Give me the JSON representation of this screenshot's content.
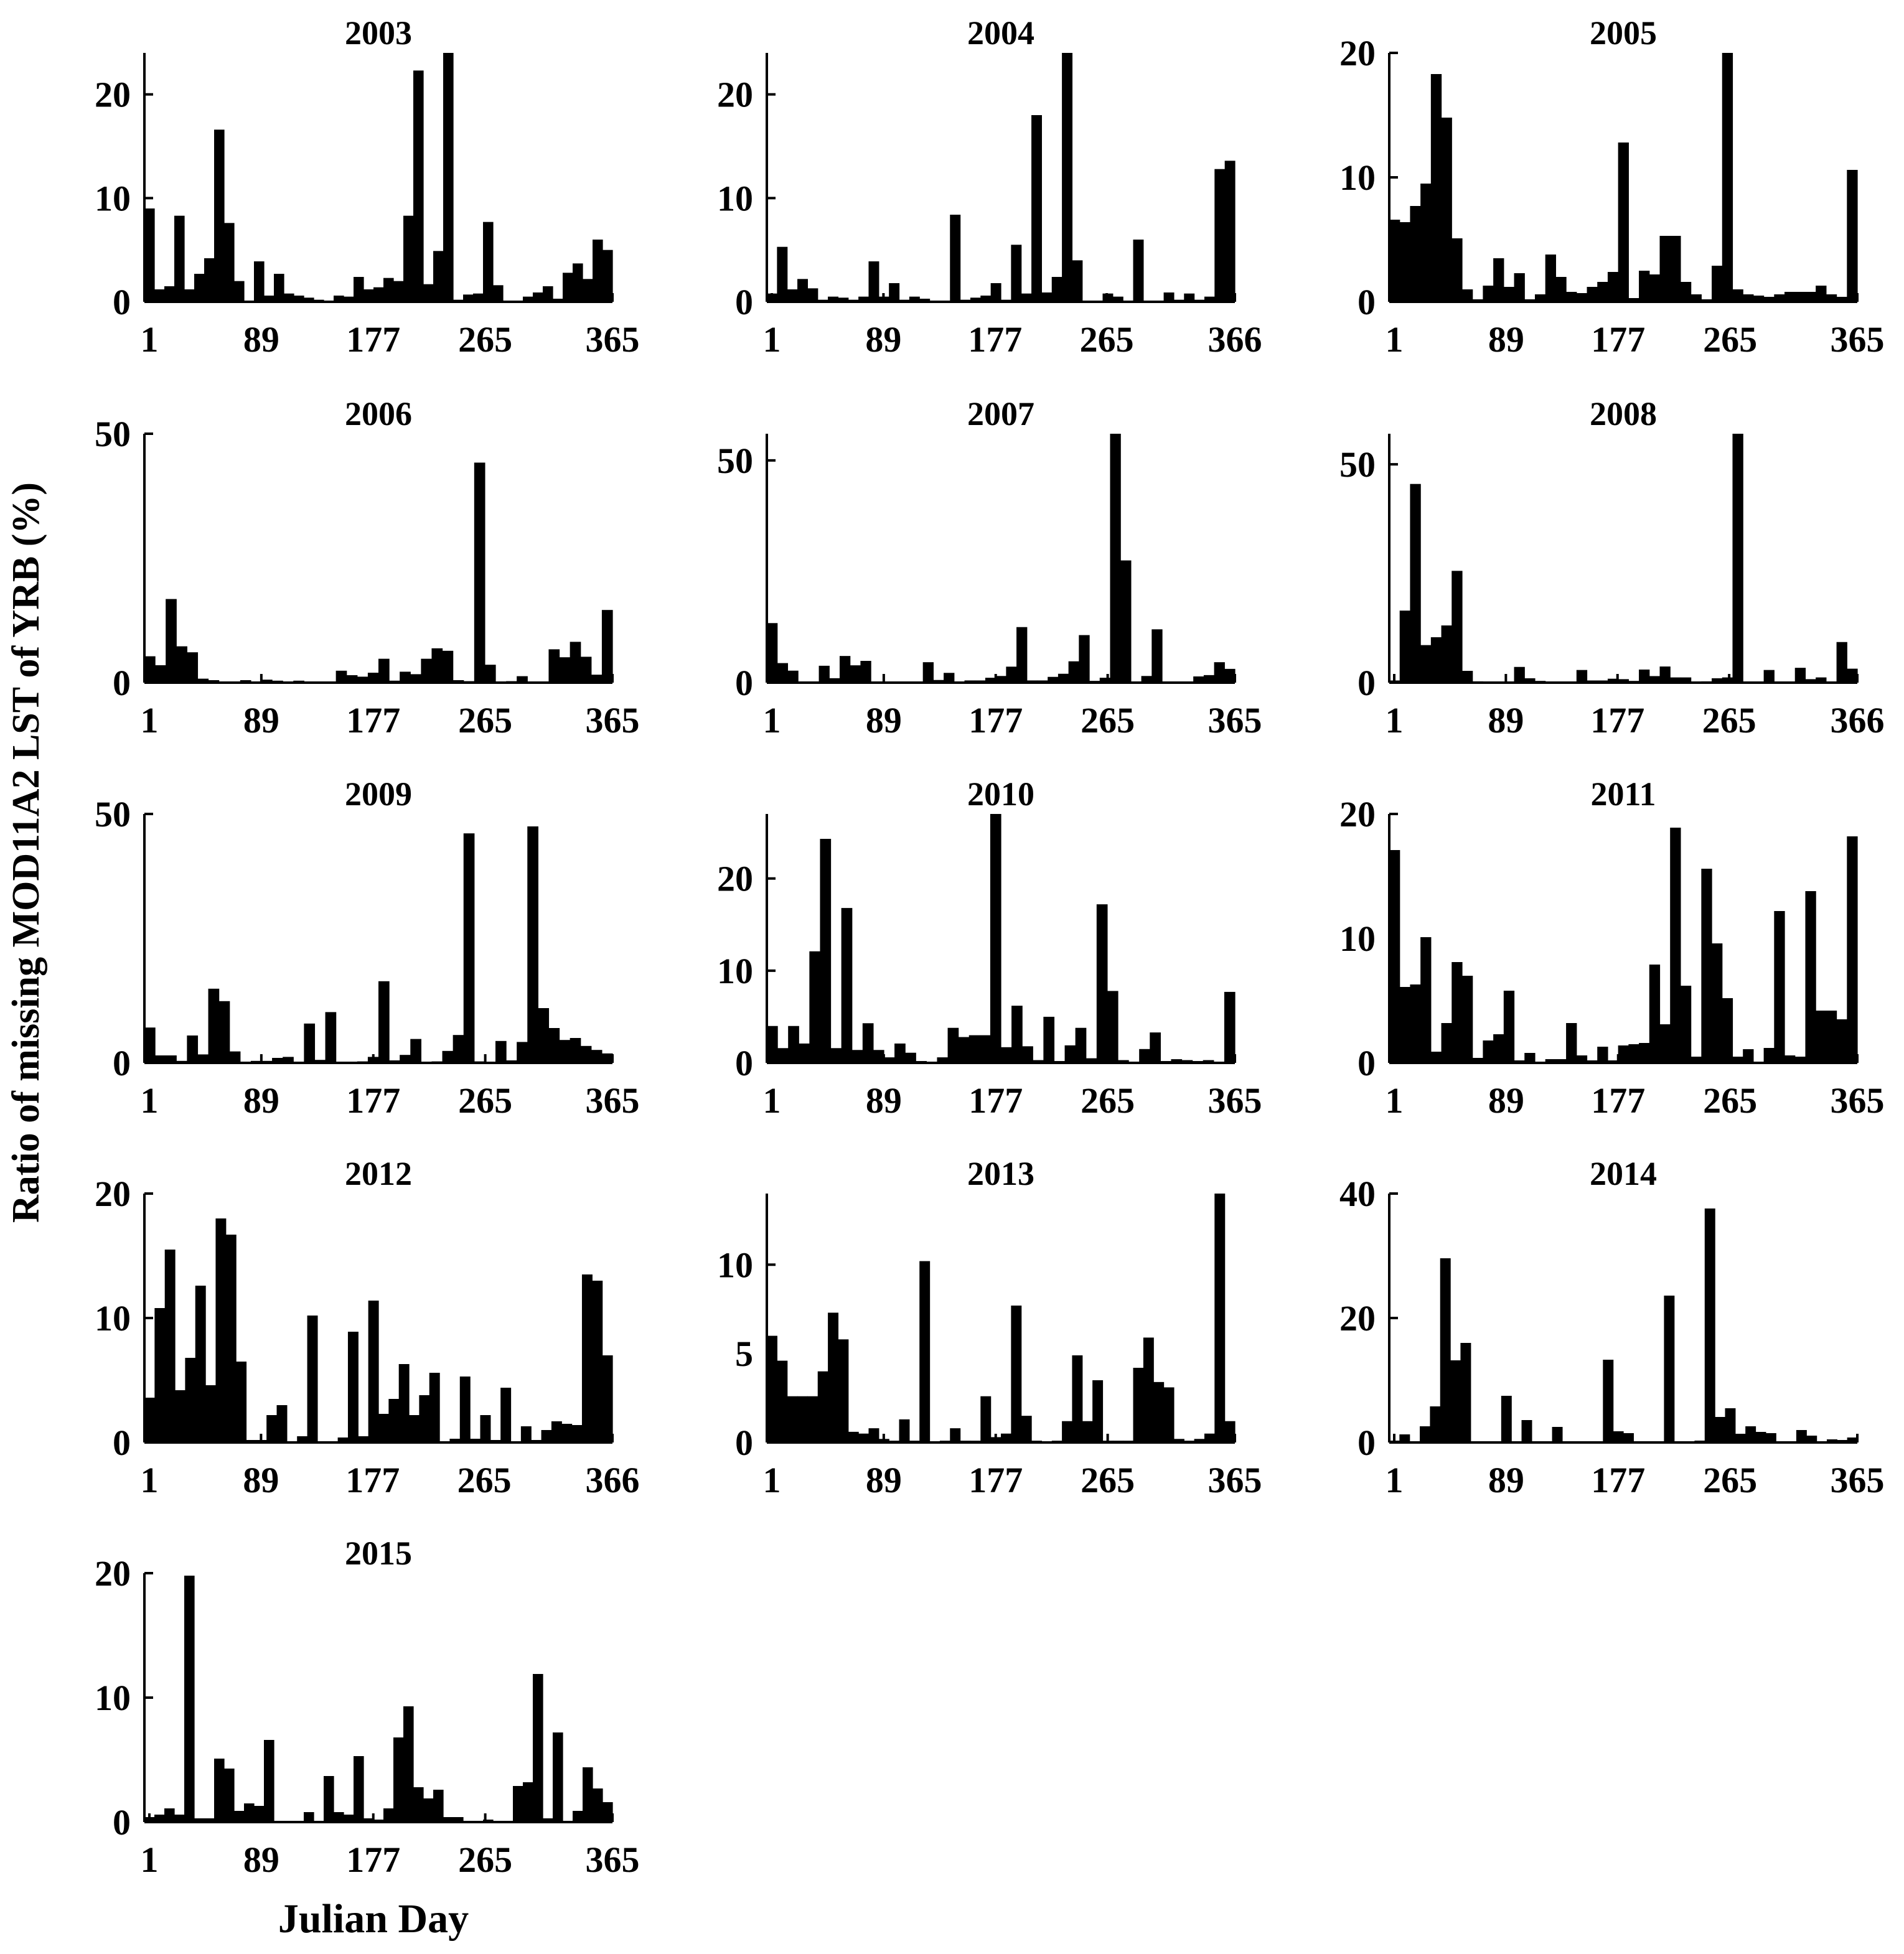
{
  "figure": {
    "ylabel": "Ratio of missing MOD11A2 LST of YRB (%)",
    "xlabel": "Julian Day"
  },
  "chart_data": [
    {
      "type": "bar",
      "title": "2003",
      "ylim": [
        0,
        24
      ],
      "yticks": [
        0,
        10,
        20
      ],
      "xticks": [
        "1",
        "89",
        "177",
        "265",
        "365"
      ],
      "values": [
        9,
        1.2,
        1.5,
        8.3,
        1.2,
        2.7,
        4.2,
        16.6,
        7.6,
        2,
        0,
        3.9,
        0.6,
        2.7,
        0.8,
        0.6,
        0.4,
        0.2,
        0.1,
        0.6,
        0.5,
        2.4,
        1.2,
        1.4,
        2.3,
        2,
        8.3,
        22.3,
        1.7,
        4.9,
        24,
        0.2,
        0.7,
        0.8,
        7.7,
        1.6,
        0,
        0,
        0.5,
        0.9,
        1.5,
        0.3,
        2.8,
        3.7,
        2.2,
        6,
        5
      ]
    },
    {
      "type": "bar",
      "title": "2004",
      "ylim": [
        0,
        24
      ],
      "yticks": [
        0,
        10,
        20
      ],
      "xticks": [
        "1",
        "89",
        "177",
        "265",
        "366"
      ],
      "values": [
        0.8,
        5.3,
        1.2,
        2.2,
        1.3,
        0.2,
        0.5,
        0.4,
        0.2,
        0.5,
        3.9,
        0.5,
        1.8,
        0.2,
        0.5,
        0.3,
        0.1,
        0,
        8.4,
        0.2,
        0.4,
        0.6,
        1.8,
        0.2,
        5.5,
        0.8,
        18,
        0.9,
        2.4,
        24,
        4,
        0,
        0,
        0.8,
        0.5,
        0,
        6,
        0.1,
        0,
        0.9,
        0.2,
        0.8,
        0.2,
        0.5,
        12.8,
        13.6
      ]
    },
    {
      "type": "bar",
      "title": "2005",
      "ylim": [
        0,
        20
      ],
      "yticks": [
        0,
        10,
        20
      ],
      "xticks": [
        "1",
        "89",
        "177",
        "265",
        "365"
      ],
      "values": [
        6.6,
        6.4,
        7.7,
        9.5,
        18.3,
        14.8,
        5.1,
        1,
        0.2,
        1.3,
        3.5,
        1.2,
        2.3,
        0.2,
        0.6,
        3.8,
        2,
        0.8,
        0.7,
        1.2,
        1.6,
        2.4,
        12.8,
        0.3,
        2.5,
        2.2,
        5.3,
        5.3,
        1.6,
        0.6,
        0.2,
        2.9,
        20,
        1,
        0.6,
        0.5,
        0.4,
        0.6,
        0.8,
        0.8,
        0.8,
        1.3,
        0.6,
        0.4,
        10.6
      ]
    },
    {
      "type": "bar",
      "title": "2006",
      "ylim": [
        0,
        50
      ],
      "yticks": [
        0,
        50
      ],
      "xticks": [
        "1",
        "89",
        "177",
        "265",
        "365"
      ],
      "values": [
        5.3,
        3.5,
        16.8,
        7.3,
        6.1,
        0.8,
        0.5,
        0.2,
        0.1,
        0.5,
        0.1,
        0.6,
        0.4,
        0.2,
        0.4,
        0.1,
        0.1,
        0.2,
        2.4,
        1.5,
        1.2,
        2,
        4.8,
        0.4,
        2.2,
        1.7,
        4.8,
        6.9,
        6.4,
        0.5,
        0.3,
        44.2,
        3.6,
        0.2,
        0.3,
        1.3,
        0.2,
        0,
        6.7,
        5.1,
        8.2,
        5.2,
        1.6,
        14.6
      ]
    },
    {
      "type": "bar",
      "title": "2007",
      "ylim": [
        0,
        56
      ],
      "yticks": [
        0,
        50
      ],
      "xticks": [
        "1",
        "89",
        "177",
        "265",
        "365"
      ],
      "values": [
        13.4,
        4.4,
        2.7,
        0.2,
        0,
        3.8,
        1,
        6,
        3.9,
        4.9,
        0,
        0,
        0,
        0,
        0.2,
        4.6,
        0.6,
        2.2,
        0.2,
        0.5,
        0.5,
        1.1,
        1.5,
        3.6,
        12.5,
        0.5,
        0.5,
        1.3,
        2,
        4.8,
        10.7,
        0.4,
        1.1,
        56,
        27.5,
        0.2,
        1.5,
        12,
        0.2,
        0,
        0,
        1.4,
        1.7,
        4.6,
        3.1
      ]
    },
    {
      "type": "bar",
      "title": "2008",
      "ylim": [
        0,
        57
      ],
      "yticks": [
        0,
        50
      ],
      "xticks": [
        "1",
        "89",
        "177",
        "265",
        "366"
      ],
      "values": [
        0.5,
        16.5,
        45.5,
        8.6,
        10.4,
        13.1,
        25.6,
        2.7,
        0.3,
        0.2,
        0.2,
        0.2,
        3.6,
        1,
        0.4,
        0.1,
        0,
        0,
        2.9,
        0.5,
        0.5,
        0.9,
        0.8,
        0.4,
        3,
        1.5,
        3.7,
        1.2,
        1.2,
        0.1,
        0.3,
        1,
        1.2,
        57,
        0.2,
        0.1,
        2.9,
        0.2,
        0.1,
        3.4,
        0.8,
        1.2,
        0.1,
        9.3,
        3.2
      ]
    },
    {
      "type": "bar",
      "title": "2009",
      "ylim": [
        0,
        50
      ],
      "yticks": [
        0,
        50
      ],
      "xticks": [
        "1",
        "89",
        "177",
        "265",
        "365"
      ],
      "values": [
        7.1,
        1.5,
        1.5,
        0.4,
        5.5,
        1.7,
        14.9,
        12.4,
        2.3,
        0.2,
        0.4,
        0.4,
        1,
        1.2,
        0,
        7.9,
        0.6,
        10.2,
        0.2,
        0.1,
        0.3,
        1.2,
        16.4,
        0.5,
        1.6,
        4.8,
        0.2,
        0.3,
        2.4,
        5.6,
        46.1,
        0.3,
        0.1,
        4.4,
        0.5,
        4.2,
        47.5,
        11,
        7,
        4.6,
        5,
        3.4,
        2.6,
        1.9
      ]
    },
    {
      "type": "bar",
      "title": "2010",
      "ylim": [
        0,
        27
      ],
      "yticks": [
        0,
        10,
        20
      ],
      "xticks": [
        "1",
        "89",
        "177",
        "265",
        "365"
      ],
      "values": [
        4,
        1.6,
        4,
        2.1,
        12.1,
        24.3,
        1.6,
        16.8,
        1.4,
        4.3,
        1.4,
        0.6,
        2.1,
        1.1,
        0.2,
        0,
        0.6,
        3.8,
        2.8,
        3,
        3,
        27,
        1.7,
        6.2,
        1.8,
        0.3,
        5,
        0.2,
        1.9,
        3.8,
        0.5,
        17.2,
        7.8,
        0.3,
        0.1,
        1.5,
        3.3,
        0.2,
        0.4,
        0.3,
        0.2,
        0.3,
        0.1,
        7.7
      ]
    },
    {
      "type": "bar",
      "title": "2011",
      "ylim": [
        0,
        20
      ],
      "yticks": [
        0,
        10,
        20
      ],
      "xticks": [
        "1",
        "89",
        "177",
        "265",
        "365"
      ],
      "values": [
        17.1,
        6.1,
        6.3,
        10.1,
        0.9,
        3.2,
        8.1,
        7,
        0.4,
        1.8,
        2.3,
        5.8,
        0.2,
        0.8,
        0.1,
        0.3,
        0.3,
        3.2,
        0.6,
        0.2,
        1.3,
        0.2,
        1.4,
        1.5,
        1.6,
        7.9,
        3.1,
        18.9,
        6.2,
        0.5,
        15.6,
        9.6,
        5.2,
        0.5,
        1.1,
        0.1,
        1.2,
        12.2,
        0.6,
        0.5,
        13.8,
        4.2,
        4.2,
        3.5,
        18.2
      ]
    },
    {
      "type": "bar",
      "title": "2012",
      "ylim": [
        0,
        20
      ],
      "yticks": [
        0,
        10,
        20
      ],
      "xticks": [
        "1",
        "89",
        "177",
        "265",
        "366"
      ],
      "values": [
        3.6,
        10.8,
        15.5,
        4.2,
        6.8,
        12.6,
        4.6,
        18,
        16.7,
        6.5,
        0.2,
        0.2,
        2.2,
        3,
        0,
        0.5,
        10.2,
        0,
        0,
        0.4,
        8.9,
        0.5,
        11.4,
        2.3,
        3.5,
        6.3,
        2.2,
        3.8,
        5.6,
        0,
        0.3,
        5.3,
        0.3,
        2.2,
        0.2,
        4.4,
        0,
        1.3,
        0.2,
        1,
        1.7,
        1.5,
        1.4,
        13.5,
        13,
        7
      ]
    },
    {
      "type": "bar",
      "title": "2013",
      "ylim": [
        0,
        14
      ],
      "yticks": [
        0,
        5,
        10
      ],
      "xticks": [
        "1",
        "89",
        "177",
        "265",
        "365"
      ],
      "values": [
        6,
        4.6,
        2.6,
        2.6,
        2.6,
        4,
        7.3,
        5.8,
        0.6,
        0.5,
        0.8,
        0.2,
        0.1,
        1.3,
        0.1,
        10.2,
        0,
        0.1,
        0.8,
        0.1,
        0.1,
        2.6,
        0.3,
        0.5,
        7.7,
        1.5,
        0.1,
        0,
        0.1,
        1.2,
        4.9,
        1.2,
        3.5,
        0.1,
        0.1,
        0.1,
        4.2,
        5.9,
        3.4,
        3.1,
        0.2,
        0.1,
        0.2,
        0.5,
        14,
        1.2
      ]
    },
    {
      "type": "bar",
      "title": "2014",
      "ylim": [
        0,
        40
      ],
      "yticks": [
        0,
        20,
        40
      ],
      "xticks": [
        "1",
        "89",
        "177",
        "265",
        "365"
      ],
      "values": [
        0.3,
        1.3,
        0.1,
        2.6,
        5.8,
        29.6,
        13.2,
        16,
        0.2,
        0.2,
        0.1,
        7.5,
        0.2,
        3.6,
        0.2,
        0,
        2.5,
        0,
        0.1,
        0.2,
        0.2,
        13.3,
        1.8,
        1.5,
        0.1,
        0,
        0.1,
        23.6,
        0,
        0.1,
        0.3,
        37.6,
        4.1,
        5.5,
        1.4,
        2.6,
        1.7,
        1.5,
        0.1,
        0.2,
        2,
        1.1,
        0.1,
        0.5,
        0.4,
        0.8
      ]
    },
    {
      "type": "bar",
      "title": "2015",
      "ylim": [
        0,
        20
      ],
      "yticks": [
        0,
        10,
        20
      ],
      "xticks": [
        "1",
        "89",
        "177",
        "265",
        "365"
      ],
      "values": [
        0.4,
        0.6,
        1.1,
        0.6,
        19.8,
        0.3,
        0.3,
        5.1,
        4.3,
        0.9,
        1.5,
        1.3,
        6.6,
        0.1,
        0,
        0.1,
        0.8,
        0,
        3.7,
        0.8,
        0.6,
        5.3,
        0.3,
        0.2,
        1.1,
        6.8,
        9.3,
        2.8,
        1.9,
        2.6,
        0.4,
        0.4,
        0,
        0,
        0.2,
        0,
        0.1,
        2.9,
        3.2,
        11.9,
        0.3,
        7.2,
        0,
        0.9,
        4.4,
        2.7,
        1.6
      ]
    }
  ]
}
